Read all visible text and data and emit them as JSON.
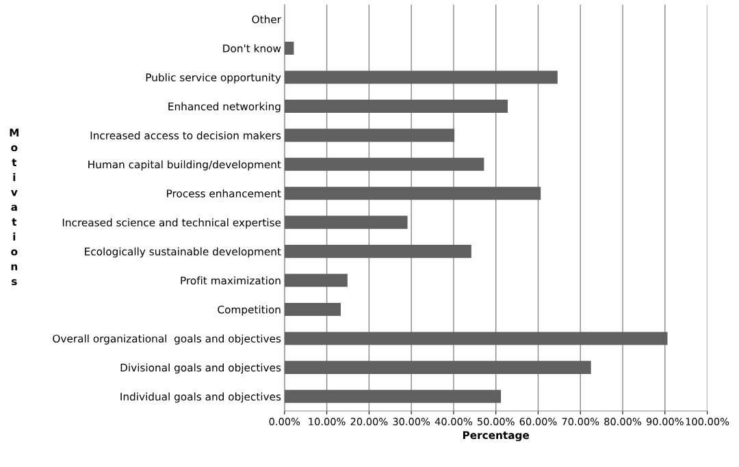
{
  "chart_data": {
    "type": "bar",
    "orientation": "horizontal",
    "xlabel": "Percentage",
    "ylabel": "Motivations",
    "categories": [
      "Other",
      "Don't know",
      "Public service opportunity",
      "Enhanced networking",
      "Increased access to decision makers",
      "Human capital building/development",
      "Process enhancement",
      "Increased science and technical expertise",
      "Ecologically sustainable development",
      "Profit maximization",
      "Competition",
      "Overall organizational  goals and objectives",
      "Divisional goals and objectives",
      "Individual goals and objectives"
    ],
    "values": [
      0,
      2.2,
      64.6,
      52.8,
      40.2,
      47.2,
      60.6,
      29.1,
      44.2,
      14.9,
      13.3,
      90.6,
      72.5,
      51.2
    ],
    "color": "#606060",
    "xlim": [
      0,
      100
    ],
    "xticks": [
      {
        "value": 0,
        "label": "0.00%"
      },
      {
        "value": 10,
        "label": "10.00%"
      },
      {
        "value": 20,
        "label": "20.00%"
      },
      {
        "value": 30,
        "label": "30.00%"
      },
      {
        "value": 40,
        "label": "40.00%"
      },
      {
        "value": 50,
        "label": "50.00%"
      },
      {
        "value": 60,
        "label": "60.00%"
      },
      {
        "value": 70,
        "label": "70.00%"
      },
      {
        "value": 80,
        "label": "80.00%"
      },
      {
        "value": 90,
        "label": "90.00%"
      },
      {
        "value": 100,
        "label": "100.00%"
      }
    ],
    "grid": "x",
    "legend": false
  }
}
